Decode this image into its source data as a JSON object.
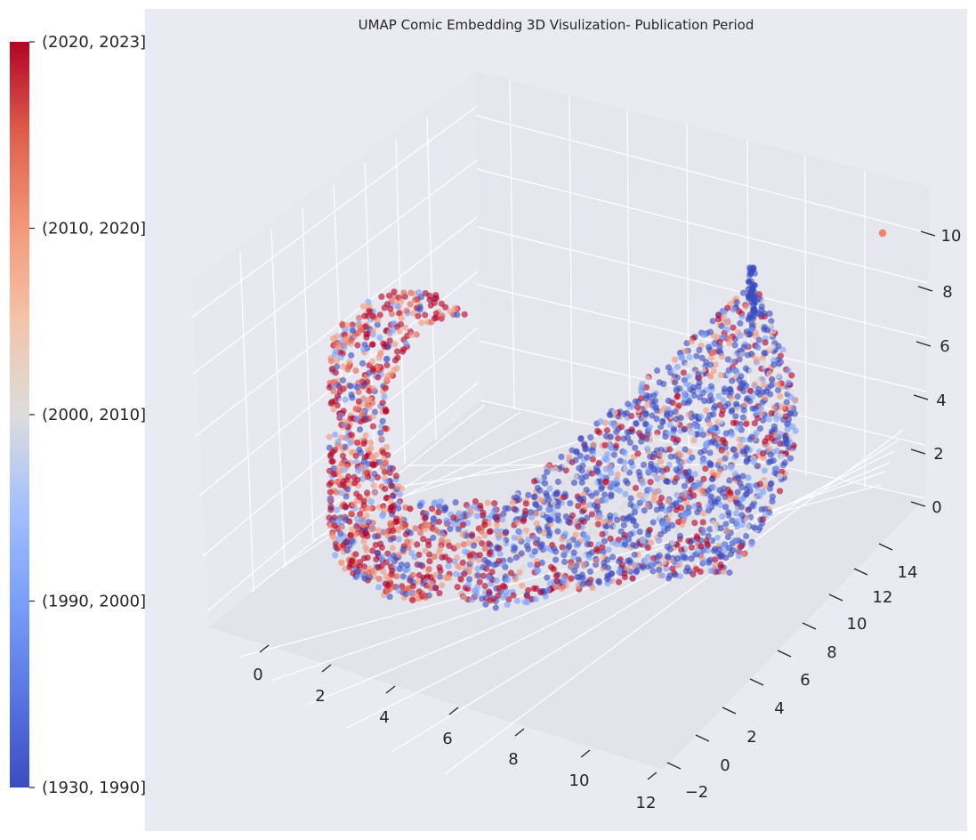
{
  "chart_data": {
    "type": "scatter",
    "title": "UMAP Comic Embedding 3D Visulization- Publication Period",
    "xlabel": "",
    "ylabel": "",
    "zlabel": "",
    "x_ticks": [
      "0",
      "2",
      "4",
      "6",
      "8",
      "10",
      "12"
    ],
    "y_ticks": [
      "−2",
      "0",
      "2",
      "4",
      "6",
      "8",
      "10",
      "12",
      "14"
    ],
    "z_ticks": [
      "0",
      "2",
      "4",
      "6",
      "8",
      "10"
    ],
    "xlim": [
      -1.5,
      12.5
    ],
    "ylim": [
      -3,
      15
    ],
    "zlim": [
      -1,
      11
    ],
    "colorbar": {
      "colormap": "coolwarm",
      "labels": [
        "(1930, 1990]",
        "(1990, 2000]",
        "(2000, 2010]",
        "(2010, 2020]",
        "(2020, 2023]"
      ],
      "colors": [
        "#3b4cc0",
        "#7b9ff9",
        "#dddcdc",
        "#f4987a",
        "#b40426"
      ]
    },
    "grid": true,
    "background": "#eaeaf2",
    "series": [
      {
        "category": "(2010, 2020]",
        "points": [
          [
            11.5,
            12.5,
            10.2
          ]
        ]
      }
    ],
    "clusters_note": "",
    "cluster_regions": [
      {
        "dominant": [
          "(2020, 2023]",
          "(2010, 2020]"
        ],
        "x_range": [
          -1,
          4
        ],
        "y_range": [
          -2,
          8
        ],
        "z_range": [
          0,
          9
        ]
      },
      {
        "dominant": [
          "(1930, 1990]",
          "(1990, 2000]"
        ],
        "x_range": [
          3,
          12
        ],
        "y_range": [
          4,
          14
        ],
        "z_range": [
          0,
          9
        ]
      }
    ]
  }
}
